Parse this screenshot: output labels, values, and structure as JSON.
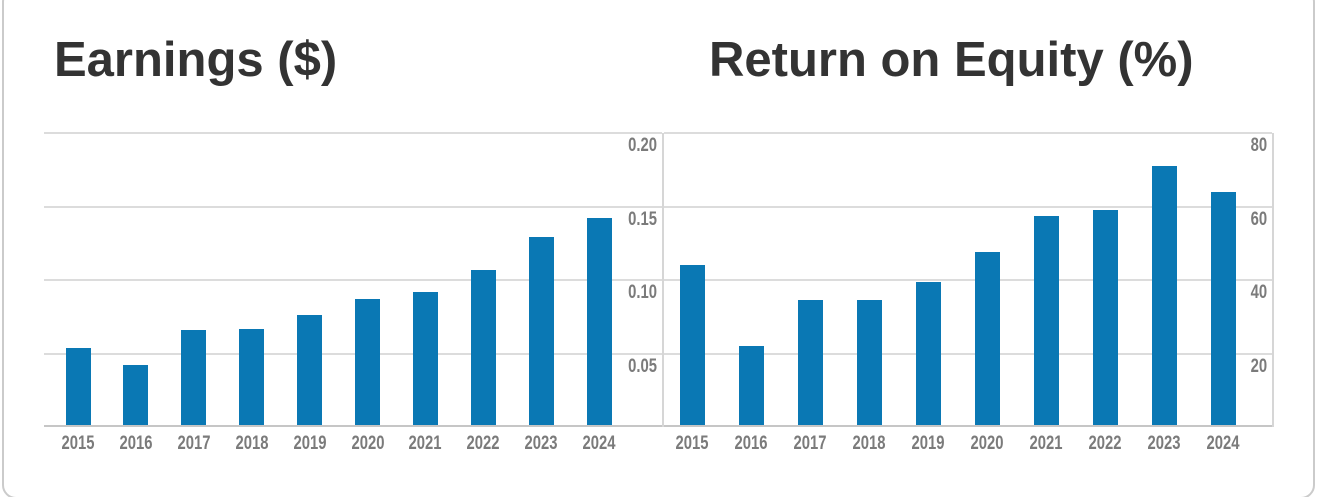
{
  "chart_data": [
    {
      "type": "bar",
      "title": "Earnings ($)",
      "categories": [
        "2015",
        "2016",
        "2017",
        "2018",
        "2019",
        "2020",
        "2021",
        "2022",
        "2023",
        "2024"
      ],
      "values": [
        0.054,
        0.042,
        0.066,
        0.067,
        0.076,
        0.087,
        0.092,
        0.107,
        0.129,
        0.142
      ],
      "ylim": [
        0,
        0.2
      ],
      "y_ticks": [
        {
          "value": 0.05,
          "label": "0.05"
        },
        {
          "value": 0.1,
          "label": "0.10"
        },
        {
          "value": 0.15,
          "label": "0.15"
        },
        {
          "value": 0.2,
          "label": "0.20"
        }
      ],
      "xlabel": "",
      "ylabel": "",
      "grid": true,
      "tick_side": "right",
      "legend": "none"
    },
    {
      "type": "bar",
      "title": "Return on Equity (%)",
      "categories": [
        "2015",
        "2016",
        "2017",
        "2018",
        "2019",
        "2020",
        "2021",
        "2022",
        "2023",
        "2024"
      ],
      "values": [
        44,
        22,
        34.5,
        34.5,
        39.5,
        47.5,
        57.5,
        59,
        71,
        64
      ],
      "ylim": [
        0,
        80
      ],
      "y_ticks": [
        {
          "value": 20,
          "label": "20"
        },
        {
          "value": 40,
          "label": "40"
        },
        {
          "value": 60,
          "label": "60"
        },
        {
          "value": 80,
          "label": "80"
        }
      ],
      "xlabel": "",
      "ylabel": "",
      "grid": true,
      "tick_side": "right",
      "legend": "none"
    }
  ],
  "colors": {
    "bar": "#0a78b4",
    "title": "#333333",
    "axis_label": "#7b7b7b",
    "gridline": "#dcdcdc",
    "baseline": "#c6c6c6",
    "divider": "#d6d6d6",
    "card_border": "#cbcbcb"
  }
}
